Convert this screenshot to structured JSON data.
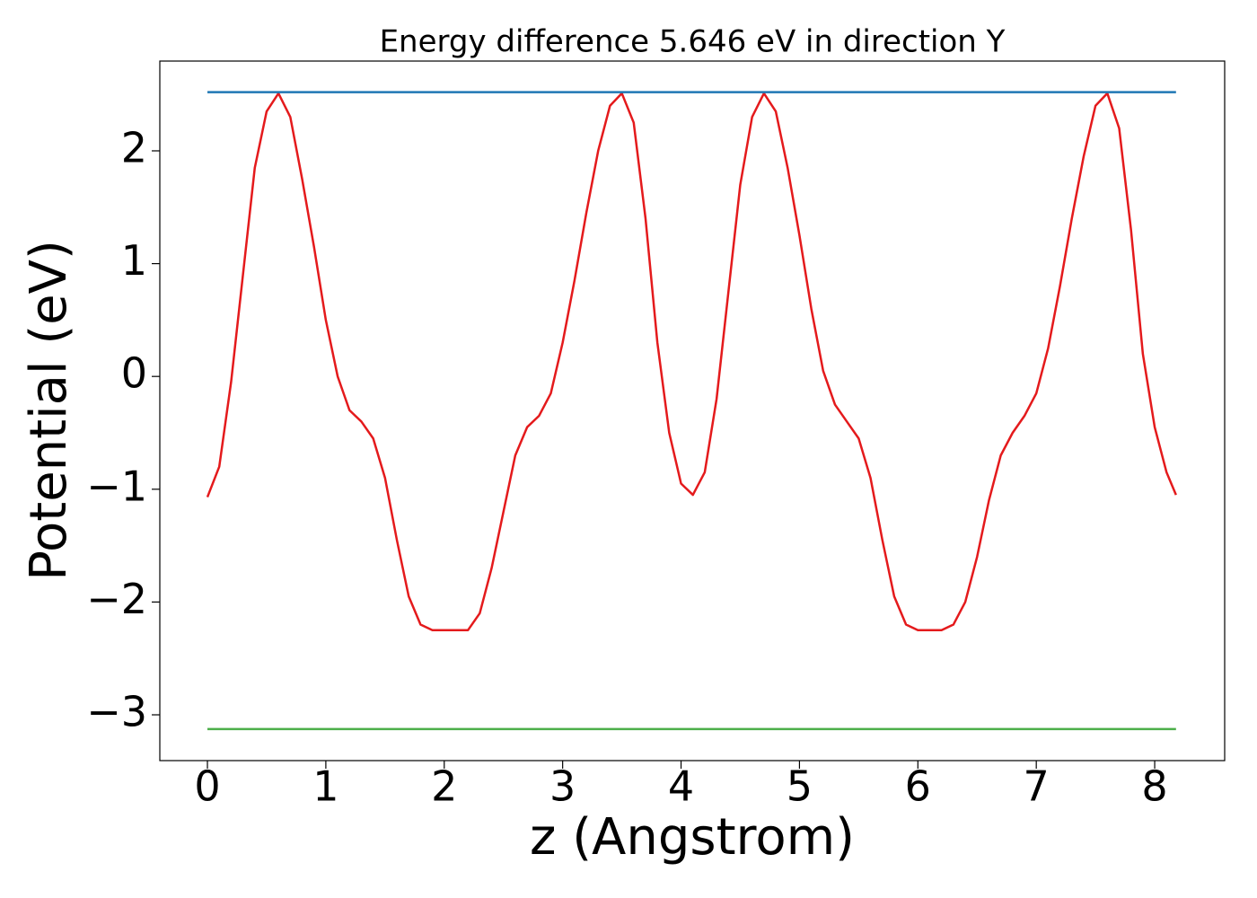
{
  "chart_data": {
    "type": "line",
    "title": "Energy difference 5.646 eV in direction Y",
    "x_label": "z (Angstrom)",
    "y_label": "Potential (eV)",
    "xlim": [
      -0.402,
      8.591
    ],
    "ylim": [
      -3.406,
      2.796
    ],
    "xticks": [
      0,
      1,
      2,
      3,
      4,
      5,
      6,
      7,
      8
    ],
    "yticks": [
      {
        "value": -3,
        "label": "−3"
      },
      {
        "value": -2,
        "label": "−2"
      },
      {
        "value": -1,
        "label": "−1"
      },
      0,
      1,
      2
    ],
    "series": [
      {
        "color": "#e41a1c",
        "x": [
          0.0,
          0.1,
          0.2,
          0.3,
          0.4,
          0.5,
          0.6,
          0.7,
          0.8,
          0.9,
          1.0,
          1.1,
          1.2,
          1.3,
          1.4,
          1.5,
          1.6,
          1.7,
          1.8,
          1.9,
          2.0,
          2.1,
          2.2,
          2.3,
          2.4,
          2.5,
          2.6,
          2.7,
          2.8,
          2.9,
          3.0,
          3.1,
          3.2,
          3.3,
          3.4,
          3.5,
          3.6,
          3.7,
          3.8,
          3.9,
          4.0,
          4.1,
          4.2,
          4.3,
          4.4,
          4.5,
          4.6,
          4.7,
          4.8,
          4.9,
          5.0,
          5.1,
          5.2,
          5.3,
          5.4,
          5.5,
          5.6,
          5.7,
          5.8,
          5.9,
          6.0,
          6.1,
          6.2,
          6.3,
          6.4,
          6.5,
          6.6,
          6.7,
          6.8,
          6.9,
          7.0,
          7.1,
          7.2,
          7.3,
          7.4,
          7.5,
          7.6,
          7.7,
          7.8,
          7.9,
          8.0,
          8.1,
          8.18
        ],
        "values": [
          -1.07,
          -0.8,
          -0.05,
          0.9,
          1.85,
          2.35,
          2.51,
          2.3,
          1.75,
          1.15,
          0.5,
          0.0,
          -0.3,
          -0.4,
          -0.55,
          -0.9,
          -1.45,
          -1.95,
          -2.2,
          -2.25,
          -2.25,
          -2.25,
          -2.25,
          -2.1,
          -1.7,
          -1.2,
          -0.7,
          -0.45,
          -0.35,
          -0.15,
          0.3,
          0.85,
          1.45,
          2.0,
          2.4,
          2.51,
          2.25,
          1.4,
          0.3,
          -0.5,
          -0.95,
          -1.05,
          -0.85,
          -0.2,
          0.75,
          1.7,
          2.3,
          2.51,
          2.35,
          1.85,
          1.25,
          0.6,
          0.05,
          -0.25,
          -0.4,
          -0.55,
          -0.9,
          -1.45,
          -1.95,
          -2.2,
          -2.25,
          -2.25,
          -2.25,
          -2.2,
          -2.0,
          -1.6,
          -1.1,
          -0.7,
          -0.5,
          -0.35,
          -0.15,
          0.25,
          0.8,
          1.4,
          1.95,
          2.4,
          2.51,
          2.2,
          1.3,
          0.2,
          -0.45,
          -0.85,
          -1.05
        ]
      },
      {
        "color": "#1f77b4",
        "x": [
          0.0,
          8.18
        ],
        "values": [
          2.52,
          2.52
        ]
      },
      {
        "color": "#4daf4a",
        "x": [
          0.0,
          8.18
        ],
        "values": [
          -3.126,
          -3.126
        ]
      }
    ]
  }
}
